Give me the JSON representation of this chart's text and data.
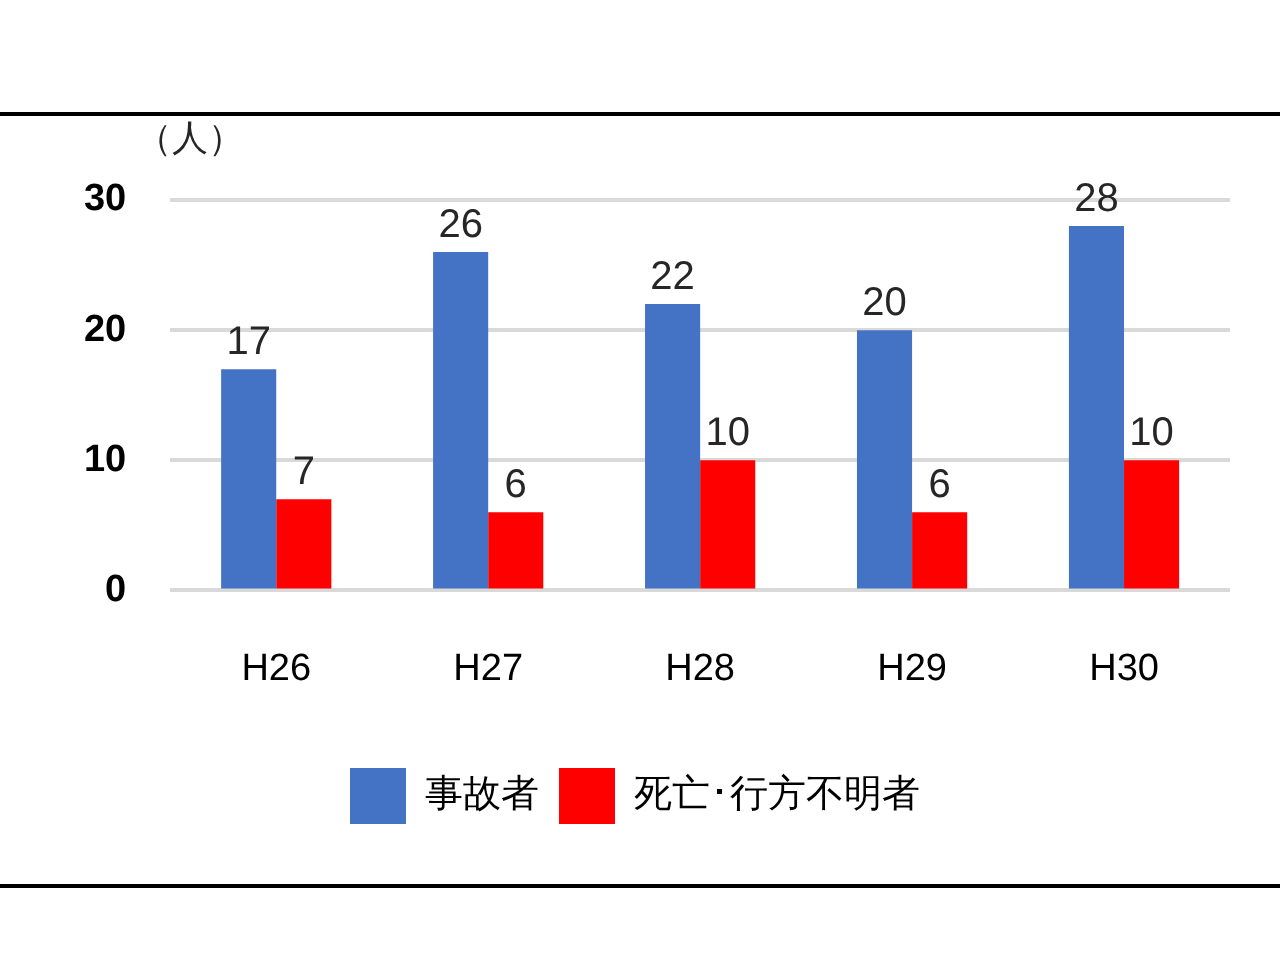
{
  "chart_data": {
    "type": "bar",
    "ylabel": "（人）",
    "categories": [
      "H26",
      "H27",
      "H28",
      "H29",
      "H30"
    ],
    "series": [
      {
        "name": "事故者",
        "color": "#4472c4",
        "values": [
          17,
          26,
          22,
          20,
          28
        ]
      },
      {
        "name": "死亡･行方不明者",
        "color": "#ff0000",
        "values": [
          7,
          6,
          10,
          6,
          10
        ]
      }
    ],
    "ylim": [
      0,
      30
    ],
    "yticks": [
      0,
      10,
      20,
      30
    ],
    "grid": "y",
    "legend": "bottom",
    "data_labels": true
  }
}
